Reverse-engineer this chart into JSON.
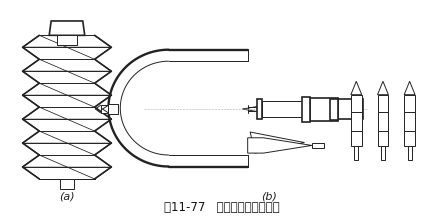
{
  "bg_color": "#ffffff",
  "fig_width": 4.44,
  "fig_height": 2.19,
  "dpi": 100,
  "label_a": "(a)",
  "label_b": "(b)",
  "caption": "图11-77   螺纹百分尺测量中径",
  "caption_fontsize": 8.5,
  "label_fontsize": 8,
  "lc": "#222222",
  "lw": 0.7,
  "lwt": 1.2
}
